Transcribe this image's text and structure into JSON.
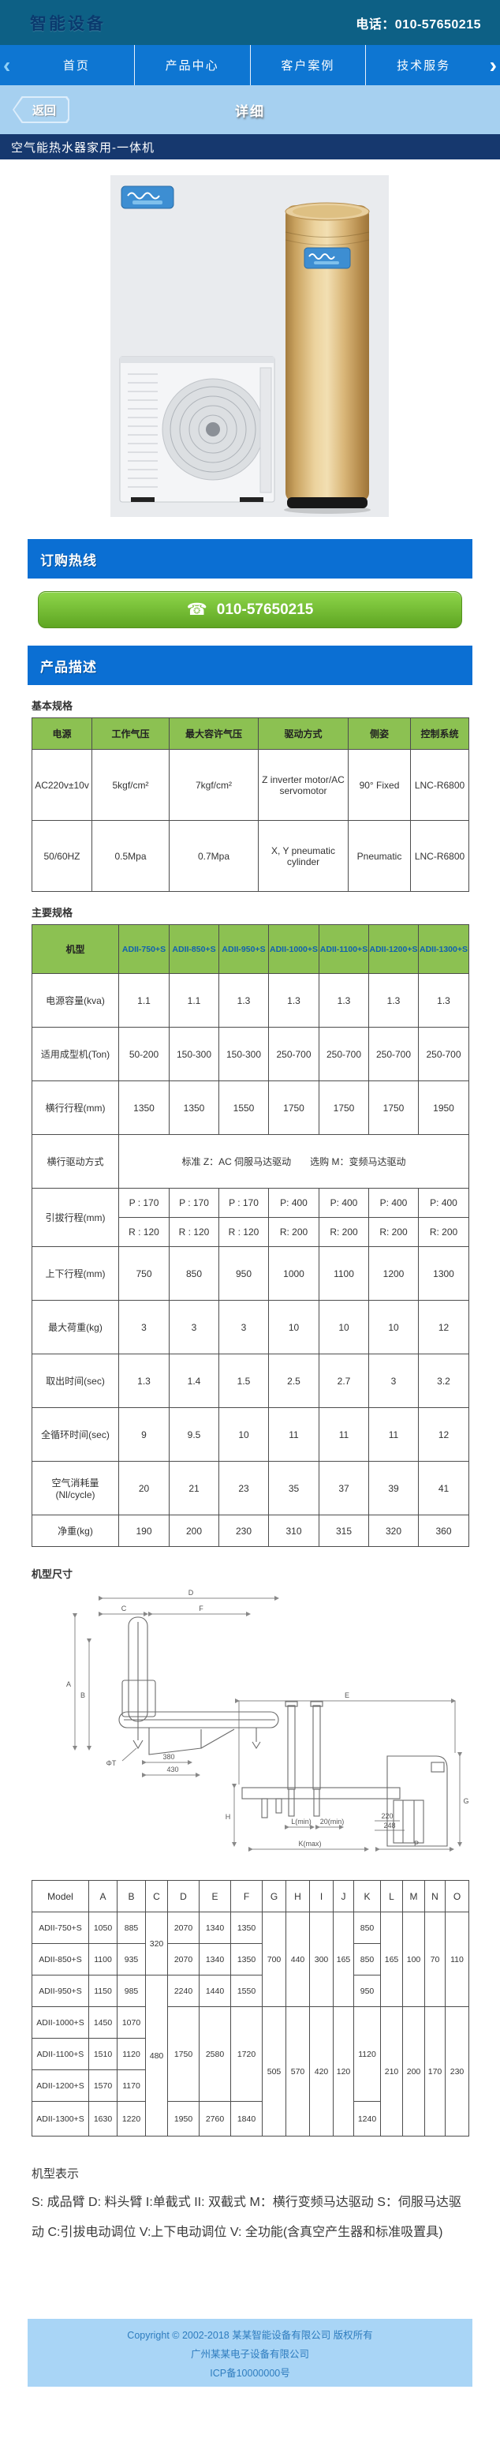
{
  "header": {
    "logo": "智能设备",
    "phone": "电话：010-57650215"
  },
  "nav": {
    "prev_icon": "‹",
    "next_icon": "›",
    "items": [
      "首页",
      "产品中心",
      "客户案例",
      "技术服务"
    ]
  },
  "subbar": {
    "back_label": "返回",
    "title": "详细"
  },
  "page_title": "空气能热水器家用-一体机",
  "hotline": {
    "section_title": "订购热线",
    "phone_icon": "☎",
    "phone_number": "010-57650215"
  },
  "product_section_title": "产品描述",
  "basic_specs": {
    "label": "基本规格",
    "headers": [
      "电源",
      "工作气压",
      "最大容许气压",
      "驱动方式",
      "侧姿",
      "控制系统"
    ],
    "rows": [
      [
        "AC220v±10v",
        "5kgf/cm²",
        "7kgf/cm²",
        "Z inverter motor/AC servomotor",
        "90° Fixed",
        "LNC-R6800"
      ],
      [
        "50/60HZ",
        "0.5Mpa",
        "0.7Mpa",
        "X, Y pneumatic cylinder",
        "Pneumatic",
        "LNC-R6800"
      ]
    ]
  },
  "main_specs": {
    "label": "主要规格",
    "corner": "机型",
    "models": [
      "ADII-750+S",
      "ADII-850+S",
      "ADII-950+S",
      "ADII-1000+S",
      "ADII-1100+S",
      "ADII-1200+S",
      "ADII-1300+S"
    ],
    "rows": [
      {
        "label": "电源容量(kva)",
        "values": [
          "1.1",
          "1.1",
          "1.3",
          "1.3",
          "1.3",
          "1.3",
          "1.3"
        ]
      },
      {
        "label": "适用成型机(Ton)",
        "values": [
          "50-200",
          "150-300",
          "150-300",
          "250-700",
          "250-700",
          "250-700",
          "250-700"
        ]
      },
      {
        "label": "横行行程(mm)",
        "values": [
          "1350",
          "1350",
          "1550",
          "1750",
          "1750",
          "1750",
          "1950"
        ]
      },
      {
        "label": "横行驱动方式",
        "merged": "标准 Z：AC 伺服马达驱动　　选购 M：变频马达驱动"
      },
      {
        "label": "引拔行程(mm)",
        "sub": [
          [
            "P : 170",
            "P : 170",
            "P : 170",
            "P: 400",
            "P: 400",
            "P: 400",
            "P: 400"
          ],
          [
            "R : 120",
            "R : 120",
            "R : 120",
            "R: 200",
            "R: 200",
            "R: 200",
            "R: 200"
          ]
        ]
      },
      {
        "label": "上下行程(mm)",
        "values": [
          "750",
          "850",
          "950",
          "1000",
          "1100",
          "1200",
          "1300"
        ]
      },
      {
        "label": "最大荷重(kg)",
        "values": [
          "3",
          "3",
          "3",
          "10",
          "10",
          "10",
          "12"
        ]
      },
      {
        "label": "取出时间(sec)",
        "values": [
          "1.3",
          "1.4",
          "1.5",
          "2.5",
          "2.7",
          "3",
          "3.2"
        ]
      },
      {
        "label": "全循环时间(sec)",
        "values": [
          "9",
          "9.5",
          "10",
          "11",
          "11",
          "11",
          "12"
        ]
      },
      {
        "label": "空气消耗量 (Nl/cycle)",
        "values": [
          "20",
          "21",
          "23",
          "35",
          "37",
          "39",
          "41"
        ]
      },
      {
        "label": "净重(kg)",
        "values": [
          "190",
          "200",
          "230",
          "310",
          "315",
          "320",
          "360"
        ]
      }
    ]
  },
  "dimensions": {
    "label": "机型尺寸",
    "headers": [
      "Model",
      "A",
      "B",
      "C",
      "D",
      "E",
      "F",
      "G",
      "H",
      "I",
      "J",
      "K",
      "L",
      "M",
      "N",
      "O"
    ],
    "rows": [
      {
        "cells": [
          {
            "v": "ADII-750+S"
          },
          {
            "v": "1050"
          },
          {
            "v": "885"
          },
          {
            "v": "320",
            "rs": 2
          },
          {
            "v": "2070"
          },
          {
            "v": "1340"
          },
          {
            "v": "1350"
          },
          {
            "v": "700",
            "rs": 3
          },
          {
            "v": "440",
            "rs": 3
          },
          {
            "v": "300",
            "rs": 3
          },
          {
            "v": "165",
            "rs": 3
          },
          {
            "v": "850"
          },
          {
            "v": "165",
            "rs": 3
          },
          {
            "v": "100",
            "rs": 3
          },
          {
            "v": "70",
            "rs": 3
          },
          {
            "v": "110",
            "rs": 3
          }
        ]
      },
      {
        "cells": [
          {
            "v": "ADII-850+S"
          },
          {
            "v": "1100"
          },
          {
            "v": "935"
          },
          {
            "v": "2070"
          },
          {
            "v": "1340"
          },
          {
            "v": "1350"
          },
          {
            "v": "850"
          }
        ]
      },
      {
        "cells": [
          {
            "v": "ADII-950+S"
          },
          {
            "v": "1150"
          },
          {
            "v": "985"
          },
          {
            "v": "480",
            "rs": 5
          },
          {
            "v": "2240"
          },
          {
            "v": "1440"
          },
          {
            "v": "1550"
          },
          {
            "v": "950"
          }
        ]
      },
      {
        "cells": [
          {
            "v": "ADII-1000+S"
          },
          {
            "v": "1450"
          },
          {
            "v": "1070"
          },
          {
            "v": "1750",
            "rs": 3
          },
          {
            "v": "2580",
            "rs": 3
          },
          {
            "v": "1720",
            "rs": 3
          },
          {
            "v": "505",
            "rs": 4
          },
          {
            "v": "570",
            "rs": 4
          },
          {
            "v": "420",
            "rs": 4
          },
          {
            "v": "120",
            "rs": 4
          },
          {
            "v": "1120",
            "rs": 3
          },
          {
            "v": "210",
            "rs": 4
          },
          {
            "v": "200",
            "rs": 4
          },
          {
            "v": "170",
            "rs": 4
          },
          {
            "v": "230",
            "rs": 4
          }
        ]
      },
      {
        "cells": [
          {
            "v": "ADII-1100+S"
          },
          {
            "v": "1510"
          },
          {
            "v": "1120"
          }
        ]
      },
      {
        "cells": [
          {
            "v": "ADII-1200+S"
          },
          {
            "v": "1570"
          },
          {
            "v": "1170"
          }
        ]
      },
      {
        "cells": [
          {
            "v": "ADII-1300+S"
          },
          {
            "v": "1630"
          },
          {
            "v": "1220"
          },
          {
            "v": "1950"
          },
          {
            "v": "2760"
          },
          {
            "v": "1840"
          },
          {
            "v": "1240"
          }
        ]
      }
    ]
  },
  "drawing": {
    "labels": {
      "d": "D",
      "c": "C",
      "f": "F",
      "a": "A",
      "b": "B",
      "phi_t": "ΦT",
      "n380": "380",
      "n430": "430",
      "e": "E",
      "g": "G",
      "h": "H",
      "k_max": "K(max)",
      "l_min": "L(min)",
      "n20_min": "20(min)",
      "n220": "220",
      "n248": "248",
      "p": "P"
    }
  },
  "legend": {
    "title": "机型表示",
    "text": "S: 成品臂 D: 料头臂  I:单截式 II: 双截式 M：横行变频马达驱动 S：伺服马达驱动  C:引拔电动调位 V:上下电动调位 V: 全功能(含真空产生器和标准吸置具)"
  },
  "footer": {
    "line1": "Copyright © 2002-2018 某某智能设备有限公司 版权所有",
    "line2": "广州某某电子设备有限公司",
    "line3": "ICP备10000000号"
  },
  "colors": {
    "header_teal": "#0d6085",
    "nav_blue": "#0e76d2",
    "subbar_blue": "#a6d0f0",
    "title_navy": "#16386e",
    "section_blue": "#0b6fd3",
    "button_green": "#6fb52c",
    "table_header_green": "#8cc152",
    "footer_bg": "#a9d5f6"
  }
}
